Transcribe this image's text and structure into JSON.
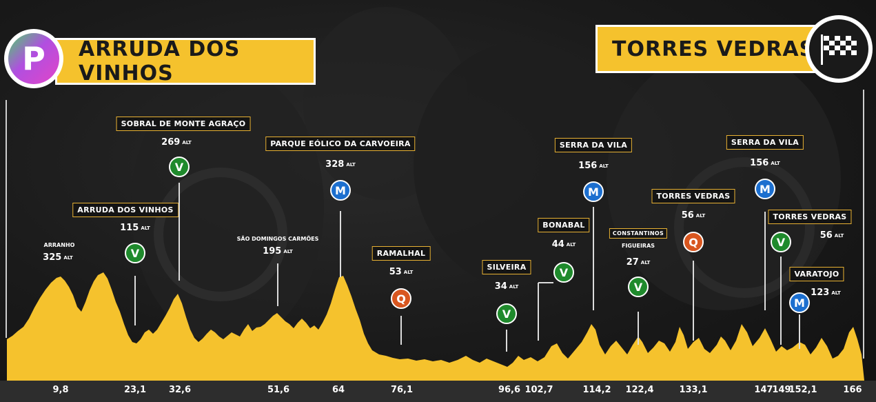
{
  "start": {
    "icon": "parking-p-icon",
    "letter": "P",
    "name": "ARRUDA DOS VINHOS"
  },
  "finish": {
    "icon": "checkered-flag-icon",
    "name": "TORRES VEDRAS"
  },
  "colors": {
    "profile": "#f5c22d",
    "label_border": "#e9b233",
    "sprint_green": "#1f8a2c",
    "climb_blue": "#1c6fcf",
    "climb_orange": "#d8561f"
  },
  "km_marks": [
    "9,8",
    "23,1",
    "32,6",
    "51,6",
    "64",
    "76,1",
    "96,6",
    "102,7",
    "114,2",
    "122,4",
    "133,1",
    "147",
    "149",
    "152,1",
    "166"
  ],
  "points": [
    {
      "id": "arranho",
      "name": "ARRANHO",
      "boxed": false,
      "alt": "325",
      "unit": "ALT",
      "badge": null
    },
    {
      "id": "arruda",
      "name": "ARRUDA DOS VINHOS",
      "boxed": true,
      "alt": "115",
      "unit": "ALT",
      "badge": "V"
    },
    {
      "id": "sobral",
      "name": "SOBRAL DE MONTE AGRAÇO",
      "boxed": true,
      "alt": "269",
      "unit": "ALT",
      "badge": "V"
    },
    {
      "id": "saodomingos",
      "name": "SÃO DOMINGOS CARMÕES",
      "boxed": false,
      "alt": "195",
      "unit": "ALT",
      "badge": null
    },
    {
      "id": "parque",
      "name": "PARQUE EÓLICO DA CARVOEIRA",
      "boxed": true,
      "alt": "328",
      "unit": "ALT",
      "badge": "M"
    },
    {
      "id": "ramalhal",
      "name": "RAMALHAL",
      "boxed": true,
      "alt": "53",
      "unit": "ALT",
      "badge": "Q"
    },
    {
      "id": "silveira",
      "name": "SILVEIRA",
      "boxed": true,
      "alt": "34",
      "unit": "ALT",
      "badge": "V"
    },
    {
      "id": "bonabal",
      "name": "BONABAL",
      "boxed": true,
      "alt": "44",
      "unit": "ALT",
      "badge": "V"
    },
    {
      "id": "serra1",
      "name": "SERRA DA VILA",
      "boxed": true,
      "alt": "156",
      "unit": "ALT",
      "badge": "M"
    },
    {
      "id": "constantinos",
      "name": "CONSTANTINOS",
      "name2": "FIGUEIRAS",
      "boxed": true,
      "alt": "27",
      "unit": "ALT",
      "badge": "V"
    },
    {
      "id": "torres1",
      "name": "TORRES VEDRAS",
      "boxed": true,
      "alt": "56",
      "unit": "ALT",
      "badge": "Q"
    },
    {
      "id": "serra2",
      "name": "SERRA DA VILA",
      "boxed": true,
      "alt": "156",
      "unit": "ALT",
      "badge": "M"
    },
    {
      "id": "torres2",
      "name": "TORRES VEDRAS",
      "boxed": true,
      "alt": "56",
      "unit": "ALT",
      "badge": "V"
    },
    {
      "id": "varatojo",
      "name": "VARATOJO",
      "boxed": true,
      "alt": "123",
      "unit": "ALT",
      "badge": "M"
    }
  ]
}
